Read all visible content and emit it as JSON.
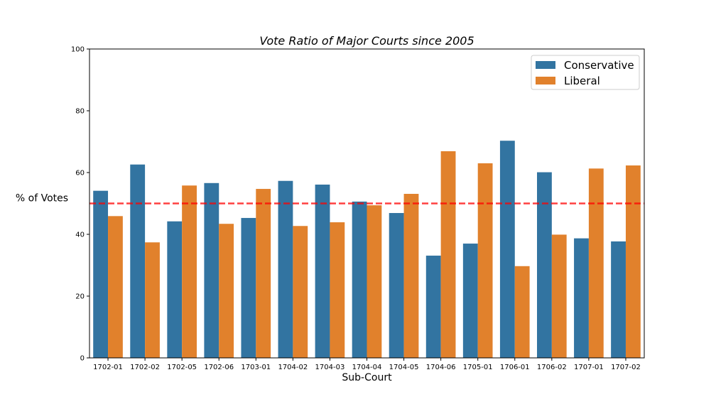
{
  "chart_data": {
    "type": "bar",
    "title": "Vote Ratio of Major Courts since 2005",
    "xlabel": "Sub-Court",
    "ylabel": "% of Votes",
    "ylim": [
      0,
      100
    ],
    "yticks": [
      0,
      20,
      40,
      60,
      80,
      100
    ],
    "categories": [
      "1702-01",
      "1702-02",
      "1702-05",
      "1702-06",
      "1703-01",
      "1704-02",
      "1704-03",
      "1704-04",
      "1704-05",
      "1704-06",
      "1705-01",
      "1706-01",
      "1706-02",
      "1707-01",
      "1707-02"
    ],
    "series": [
      {
        "name": "Conservative",
        "color": "#3274a1",
        "values": [
          54.1,
          62.6,
          44.2,
          56.6,
          45.3,
          57.3,
          56.1,
          50.6,
          46.9,
          33.1,
          37.0,
          70.3,
          60.1,
          38.7,
          37.7
        ]
      },
      {
        "name": "Liberal",
        "color": "#e1812c",
        "values": [
          45.9,
          37.4,
          55.8,
          43.4,
          54.7,
          42.7,
          43.9,
          49.4,
          53.1,
          66.9,
          63.0,
          29.7,
          39.9,
          61.3,
          62.3
        ]
      }
    ],
    "reference_line": {
      "value": 50,
      "color": "#ff0000",
      "style": "dashed"
    },
    "legend_position": "top-right",
    "grid": false
  }
}
